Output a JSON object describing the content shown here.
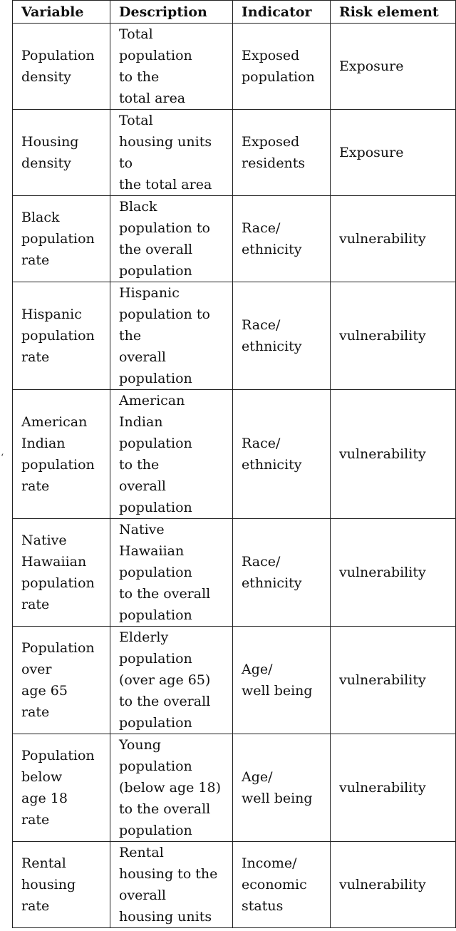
{
  "stray_mark": "‘",
  "headers": [
    "Variable",
    "Description",
    "Indicator",
    "Risk element"
  ],
  "rows": [
    {
      "variable": "Population\ndensity",
      "description": "Total\npopulation\nto the\ntotal area",
      "indicator": "Exposed\npopulation",
      "risk": "Exposure"
    },
    {
      "variable": "Housing\ndensity",
      "description": "Total\nhousing units\nto\nthe total area",
      "indicator": "Exposed\nresidents",
      "risk": "Exposure"
    },
    {
      "variable": "Black\npopulation\nrate",
      "description": "Black\npopulation to\nthe overall\npopulation",
      "indicator": "Race/\nethnicity",
      "risk": "vulnerability"
    },
    {
      "variable": "Hispanic\npopulation\nrate",
      "description": "Hispanic\npopulation to\nthe\noverall\npopulation",
      "indicator": "Race/\nethnicity",
      "risk": "vulnerability"
    },
    {
      "variable": "American\nIndian\npopulation\nrate",
      "description": "American\nIndian\npopulation\nto the\noverall\npopulation",
      "indicator": "Race/\nethnicity",
      "risk": "vulnerability"
    },
    {
      "variable": "Native\nHawaiian\npopulation\nrate",
      "description": "Native\nHawaiian\npopulation\nto the overall\npopulation",
      "indicator": "Race/\nethnicity",
      "risk": "vulnerability"
    },
    {
      "variable": "Population\nover\nage 65\nrate",
      "description": "Elderly\npopulation\n(over age 65)\nto the overall\npopulation",
      "indicator": "Age/\nwell being",
      "risk": "vulnerability"
    },
    {
      "variable": "Population\nbelow\nage 18\nrate",
      "description": "Young\npopulation\n(below age 18)\nto the overall\npopulation",
      "indicator": "Age/\nwell being",
      "risk": "vulnerability"
    },
    {
      "variable": "Rental\nhousing\nrate",
      "description": "Rental\nhousing to the\noverall\nhousing units",
      "indicator": "Income/\neconomic\nstatus",
      "risk": "vulnerability"
    }
  ]
}
